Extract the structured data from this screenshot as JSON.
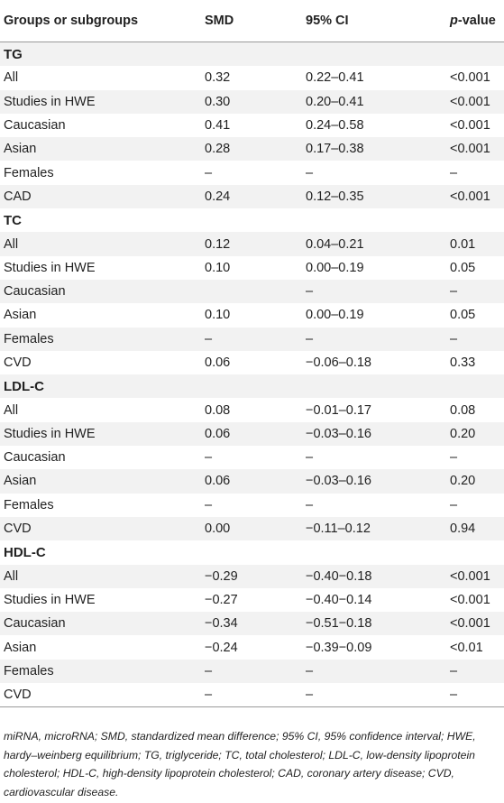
{
  "table": {
    "headers": {
      "group": "Groups or subgroups",
      "smd": "SMD",
      "ci": "95% CI",
      "p_italic": "p",
      "p_rest": "-value"
    },
    "rows": [
      {
        "type": "group",
        "label": "TG"
      },
      {
        "type": "data",
        "label": "All",
        "smd": "0.32",
        "ci": "0.22–0.41",
        "p": "<0.001"
      },
      {
        "type": "data",
        "label": "Studies in HWE",
        "smd": "0.30",
        "ci": "0.20–0.41",
        "p": "<0.001"
      },
      {
        "type": "data",
        "label": "Caucasian",
        "smd": "0.41",
        "ci": "0.24–0.58",
        "p": "<0.001"
      },
      {
        "type": "data",
        "label": "Asian",
        "smd": "0.28",
        "ci": "0.17–0.38",
        "p": "<0.001"
      },
      {
        "type": "data",
        "label": "Females",
        "smd": "–",
        "ci": "–",
        "p": "–"
      },
      {
        "type": "data",
        "label": "CAD",
        "smd": "0.24",
        "ci": "0.12–0.35",
        "p": "<0.001"
      },
      {
        "type": "group",
        "label": "TC"
      },
      {
        "type": "data",
        "label": "All",
        "smd": "0.12",
        "ci": "0.04–0.21",
        "p": "0.01"
      },
      {
        "type": "data",
        "label": "Studies in HWE",
        "smd": "0.10",
        "ci": "0.00–0.19",
        "p": "0.05"
      },
      {
        "type": "data",
        "label": "Caucasian",
        "smd": "",
        "ci": "–",
        "p": "–"
      },
      {
        "type": "data",
        "label": "Asian",
        "smd": "0.10",
        "ci": "0.00–0.19",
        "p": "0.05"
      },
      {
        "type": "data",
        "label": "Females",
        "smd": "–",
        "ci": "–",
        "p": "–"
      },
      {
        "type": "data",
        "label": "CVD",
        "smd": "0.06",
        "ci": "−0.06–0.18",
        "p": "0.33"
      },
      {
        "type": "group",
        "label": "LDL-C"
      },
      {
        "type": "data",
        "label": "All",
        "smd": "0.08",
        "ci": "−0.01–0.17",
        "p": "0.08"
      },
      {
        "type": "data",
        "label": "Studies in HWE",
        "smd": "0.06",
        "ci": "−0.03–0.16",
        "p": "0.20"
      },
      {
        "type": "data",
        "label": "Caucasian",
        "smd": "–",
        "ci": "–",
        "p": "–"
      },
      {
        "type": "data",
        "label": "Asian",
        "smd": "0.06",
        "ci": "−0.03–0.16",
        "p": "0.20"
      },
      {
        "type": "data",
        "label": "Females",
        "smd": "–",
        "ci": "–",
        "p": "–"
      },
      {
        "type": "data",
        "label": "CVD",
        "smd": "0.00",
        "ci": "−0.11–0.12",
        "p": "0.94"
      },
      {
        "type": "group",
        "label": "HDL-C"
      },
      {
        "type": "data",
        "label": "All",
        "smd": "−0.29",
        "ci": "−0.40−0.18",
        "p": "<0.001"
      },
      {
        "type": "data",
        "label": "Studies in HWE",
        "smd": "−0.27",
        "ci": "−0.40−0.14",
        "p": "<0.001"
      },
      {
        "type": "data",
        "label": "Caucasian",
        "smd": "−0.34",
        "ci": "−0.51−0.18",
        "p": "<0.001"
      },
      {
        "type": "data",
        "label": "Asian",
        "smd": "−0.24",
        "ci": "−0.39−0.09",
        "p": "<0.01"
      },
      {
        "type": "data",
        "label": "Females",
        "smd": "–",
        "ci": "–",
        "p": "–"
      },
      {
        "type": "data",
        "label": "CVD",
        "smd": "–",
        "ci": "–",
        "p": "–"
      }
    ]
  },
  "footnote": "miRNA, microRNA; SMD, standardized mean difference; 95% CI, 95% confidence interval; HWE, hardy–weinberg equilibrium; TG, triglyceride; TC, total cholesterol; LDL-C, low-density lipoprotein cholesterol; HDL-C, high-density lipoprotein cholesterol; CAD, coronary artery disease; CVD, cardiovascular disease.",
  "colors": {
    "stripe": "#f2f2f2",
    "rule": "#9a9a9a",
    "text": "#222222"
  }
}
